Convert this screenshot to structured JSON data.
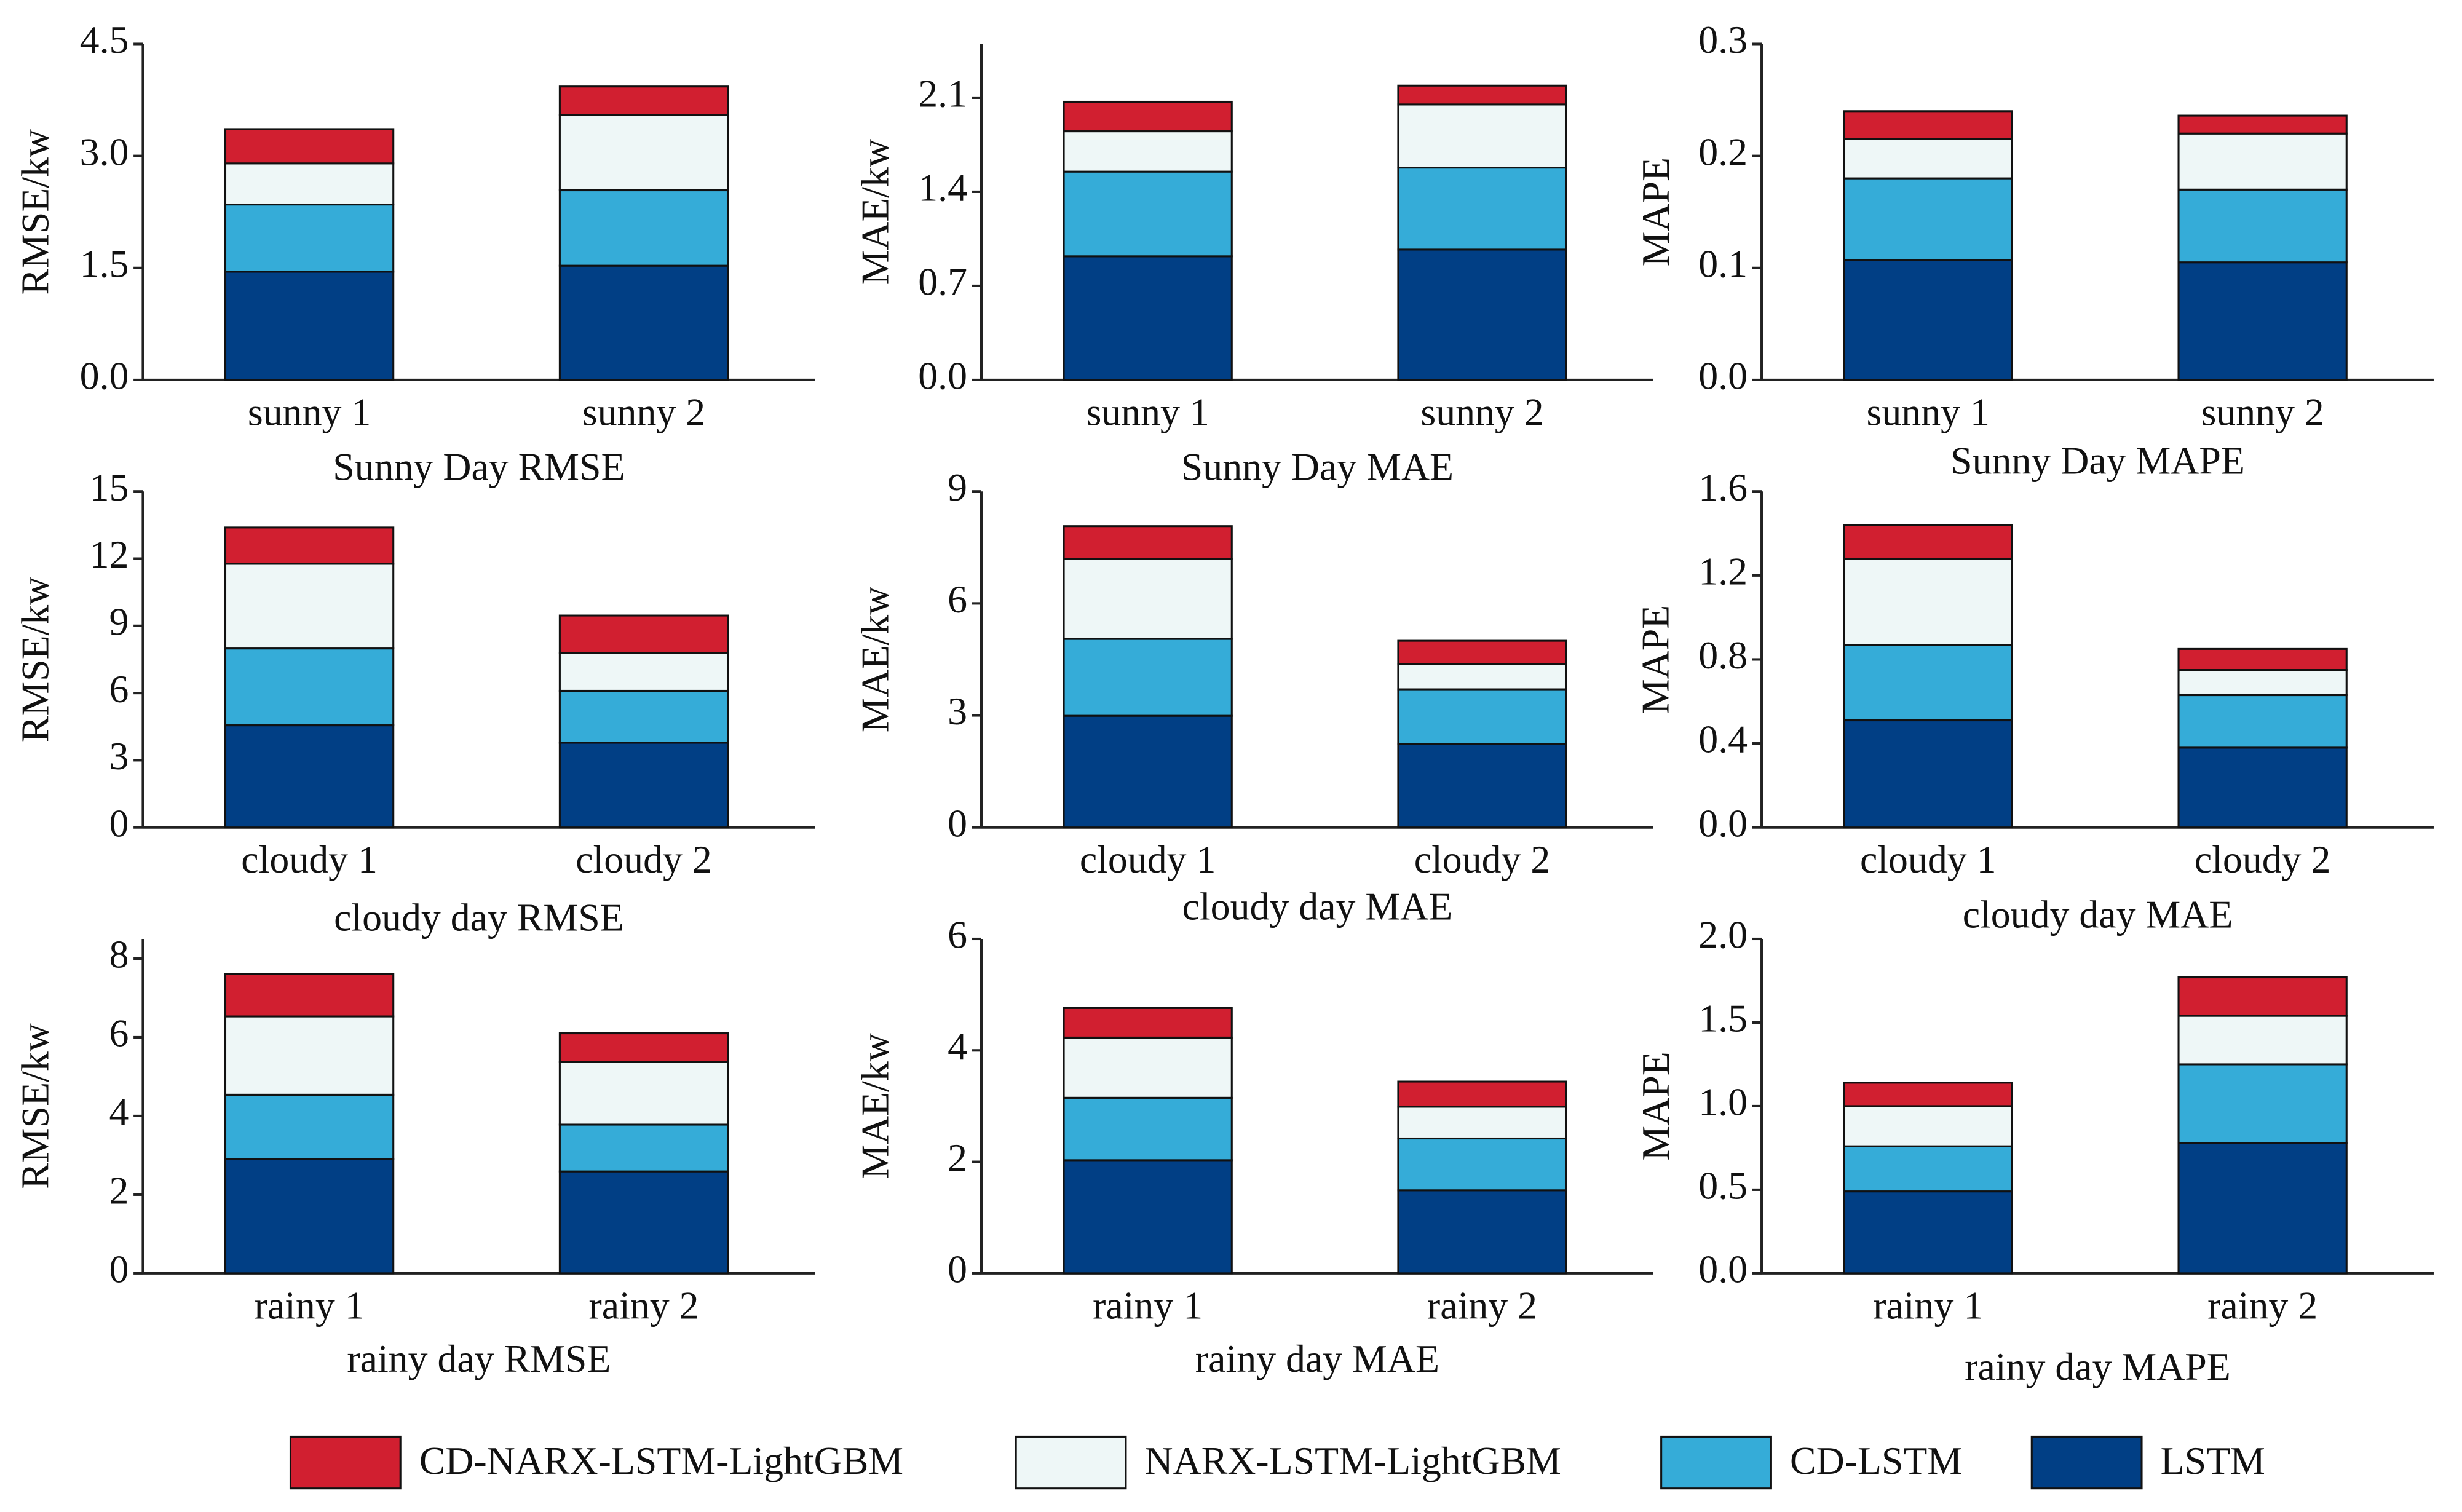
{
  "legend": [
    {
      "name": "CD-NARX-LSTM-LightGBM",
      "color": "#d11f30"
    },
    {
      "name": "NARX-LSTM-LightGBM",
      "color": "#eef7f7"
    },
    {
      "name": "CD-LSTM",
      "color": "#35acd8"
    },
    {
      "name": "LSTM",
      "color": "#013f85"
    }
  ],
  "chart_data": [
    {
      "type": "bar",
      "stacked": true,
      "title": "Sunny Day RMSE",
      "y_label": "RMSE/kw",
      "categories": [
        "sunny 1",
        "sunny 2"
      ],
      "series": [
        {
          "values": [
            1.45,
            1.53
          ]
        },
        {
          "values": [
            0.9,
            1.01
          ]
        },
        {
          "values": [
            0.55,
            1.01
          ]
        },
        {
          "values": [
            0.46,
            0.38
          ]
        }
      ],
      "ylim": [
        0,
        4.5
      ],
      "yticks": [
        {
          "value": 0,
          "label": "0.0"
        },
        1.5,
        {
          "value": 3,
          "label": "3.0"
        },
        4.5
      ]
    },
    {
      "type": "bar",
      "stacked": true,
      "title": "Sunny Day MAE",
      "y_label": "MAE/kw",
      "categories": [
        "sunny 1",
        "sunny 2"
      ],
      "series": [
        {
          "values": [
            0.92,
            0.97
          ]
        },
        {
          "values": [
            0.63,
            0.61
          ]
        },
        {
          "values": [
            0.3,
            0.47
          ]
        },
        {
          "values": [
            0.22,
            0.14
          ]
        }
      ],
      "ylim": [
        0,
        2.5
      ],
      "yticks": [
        {
          "value": 0,
          "label": "0.0"
        },
        0.7,
        1.4,
        2.1
      ]
    },
    {
      "type": "bar",
      "stacked": true,
      "title": "Sunny Day MAPE",
      "y_label": "MAPE",
      "categories": [
        "sunny 1",
        "sunny 2"
      ],
      "series": [
        {
          "values": [
            0.107,
            0.105
          ]
        },
        {
          "values": [
            0.073,
            0.065
          ]
        },
        {
          "values": [
            0.035,
            0.05
          ]
        },
        {
          "values": [
            0.025,
            0.016
          ]
        }
      ],
      "ylim": [
        0,
        0.3
      ],
      "yticks": [
        {
          "value": 0,
          "label": "0.0"
        },
        0.1,
        0.2,
        0.3
      ]
    },
    {
      "type": "bar",
      "stacked": true,
      "title": "cloudy day RMSE",
      "y_label": "RMSE/kw",
      "categories": [
        "cloudy 1",
        "cloudy 2"
      ],
      "series": [
        {
          "values": [
            4.56,
            3.78
          ]
        },
        {
          "values": [
            3.43,
            2.32
          ]
        },
        {
          "values": [
            3.78,
            1.68
          ]
        },
        {
          "values": [
            1.62,
            1.68
          ]
        }
      ],
      "ylim": [
        0,
        15
      ],
      "yticks": [
        0,
        3,
        6,
        9,
        12,
        15
      ]
    },
    {
      "type": "bar",
      "stacked": true,
      "title": "cloudy day MAE",
      "y_label": "MAE/kw",
      "categories": [
        "cloudy 1",
        "cloudy 2"
      ],
      "series": [
        {
          "values": [
            2.99,
            2.23
          ]
        },
        {
          "values": [
            2.06,
            1.47
          ]
        },
        {
          "values": [
            2.14,
            0.67
          ]
        },
        {
          "values": [
            0.88,
            0.63
          ]
        }
      ],
      "ylim": [
        0,
        9
      ],
      "yticks": [
        0,
        3,
        6,
        9
      ]
    },
    {
      "type": "bar",
      "stacked": true,
      "title": "cloudy day MAE",
      "y_label": "MAPE",
      "categories": [
        "cloudy 1",
        "cloudy 2"
      ],
      "series": [
        {
          "values": [
            0.51,
            0.38
          ]
        },
        {
          "values": [
            0.36,
            0.25
          ]
        },
        {
          "values": [
            0.41,
            0.12
          ]
        },
        {
          "values": [
            0.16,
            0.1
          ]
        }
      ],
      "ylim": [
        0,
        1.6
      ],
      "yticks": [
        {
          "value": 0,
          "label": "0.0"
        },
        0.4,
        0.8,
        1.2,
        1.6
      ]
    },
    {
      "type": "bar",
      "stacked": true,
      "title": "rainy day RMSE",
      "y_label": "RMSE/kw",
      "categories": [
        "rainy 1",
        "rainy 2"
      ],
      "series": [
        {
          "values": [
            2.91,
            2.59
          ]
        },
        {
          "values": [
            1.63,
            1.19
          ]
        },
        {
          "values": [
            1.99,
            1.6
          ]
        },
        {
          "values": [
            1.08,
            0.72
          ]
        }
      ],
      "ylim": [
        0,
        8.5
      ],
      "yticks": [
        0,
        2,
        4,
        6,
        8
      ]
    },
    {
      "type": "bar",
      "stacked": true,
      "title": "rainy day MAE",
      "y_label": "MAE/kw",
      "categories": [
        "rainy 1",
        "rainy 2"
      ],
      "series": [
        {
          "values": [
            2.03,
            1.49
          ]
        },
        {
          "values": [
            1.12,
            0.93
          ]
        },
        {
          "values": [
            1.08,
            0.57
          ]
        },
        {
          "values": [
            0.53,
            0.45
          ]
        }
      ],
      "ylim": [
        0,
        6
      ],
      "yticks": [
        0,
        2,
        4,
        6
      ]
    },
    {
      "type": "bar",
      "stacked": true,
      "title": "rainy day MAPE",
      "y_label": "MAPE",
      "categories": [
        "rainy 1",
        "rainy 2"
      ],
      "series": [
        {
          "values": [
            0.49,
            0.78
          ]
        },
        {
          "values": [
            0.27,
            0.47
          ]
        },
        {
          "values": [
            0.24,
            0.29
          ]
        },
        {
          "values": [
            0.14,
            0.23
          ]
        }
      ],
      "ylim": [
        0,
        2
      ],
      "yticks": [
        {
          "value": 0,
          "label": "0.0"
        },
        0.5,
        {
          "value": 1,
          "label": "1.0"
        },
        1.5,
        {
          "value": 2,
          "label": "2.0"
        }
      ]
    }
  ]
}
